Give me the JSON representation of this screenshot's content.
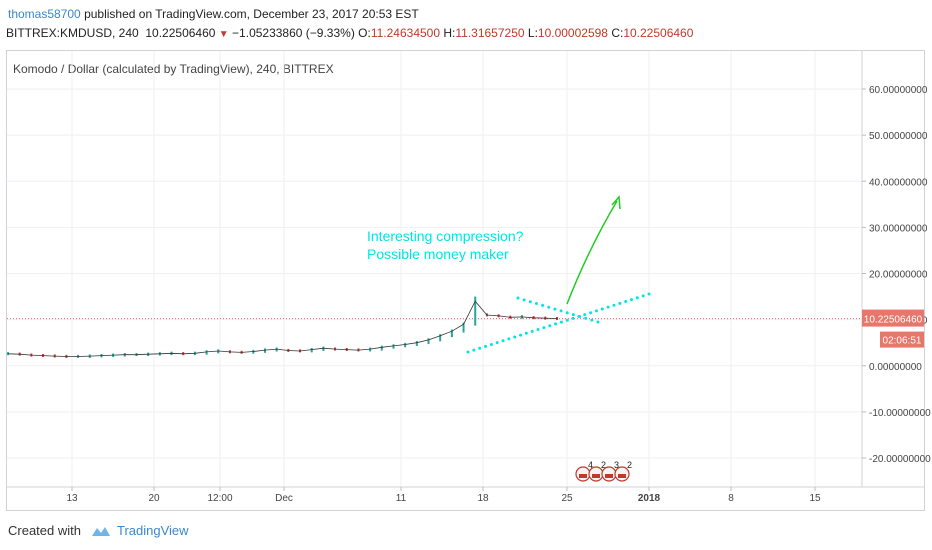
{
  "header": {
    "user": "thomas58700",
    "published": " published on TradingView.com, December 23, 2017 20:53 EST",
    "symbol": "BITTREX:KMDUSD, 240",
    "last": "10.22506460",
    "change": "−1.05233860 (−9.33%)",
    "o_label": "O:",
    "o_value": "11.24634500",
    "h_label": "H:",
    "h_value": "11.31657250",
    "l_label": "L:",
    "l_value": "10.00002598",
    "c_label": "C:",
    "c_value": "10.22506460"
  },
  "chart_title": "Komodo / Dollar (calculated by TradingView), 240, BITTREX",
  "annotation": {
    "line1": "Interesting compression?",
    "line2": "Possible money maker",
    "color": "#00e5e5"
  },
  "price_label": "10.22506460",
  "time_label": "02:06:51",
  "events": [
    "4",
    "2",
    "3",
    "2"
  ],
  "footer": {
    "created_with": "Created with",
    "brand": "TradingView"
  },
  "colors": {
    "up": "#26a69a",
    "down": "#c0392b",
    "accent": "#3a88c9",
    "arrow": "#22cc22",
    "price_line": "#e06a5f"
  },
  "chart_data": {
    "type": "line",
    "title": "Komodo / Dollar (calculated by TradingView), 240, BITTREX",
    "xlabel": "",
    "ylabel": "",
    "ylim": [
      -27,
      67
    ],
    "y_ticks": [
      60,
      50,
      40,
      30,
      20,
      10,
      0,
      -10,
      -20
    ],
    "y_tick_labels": [
      "60.00000000",
      "50.00000000",
      "40.00000000",
      "30.00000000",
      "20.00000000",
      "10.00000000",
      "0.00000000",
      "-10.00000000",
      "-20.00000000"
    ],
    "x_ticks": [
      "13",
      "20",
      "12:00",
      "Dec",
      "11",
      "18",
      "25",
      "2018",
      "8",
      "15"
    ],
    "x_tick_bold": [
      "2018"
    ],
    "series": [
      {
        "values": [
          2.6,
          2.5,
          2.3,
          2.2,
          2.1,
          2.0,
          2.0,
          2.1,
          2.2,
          2.3,
          2.4,
          2.4,
          2.5,
          2.6,
          2.7,
          2.6,
          2.7,
          3.0,
          3.2,
          3.0,
          2.9,
          3.1,
          3.4,
          3.6,
          3.3,
          3.2,
          3.5,
          3.8,
          3.6,
          3.5,
          3.4,
          3.6,
          4.0,
          4.3,
          4.6,
          5.0,
          5.6,
          6.5,
          7.5,
          9.0,
          14.0,
          11.0,
          10.8,
          10.5,
          10.6,
          10.4,
          10.3,
          10.22
        ]
      }
    ],
    "last_price": 10.2250646
  }
}
